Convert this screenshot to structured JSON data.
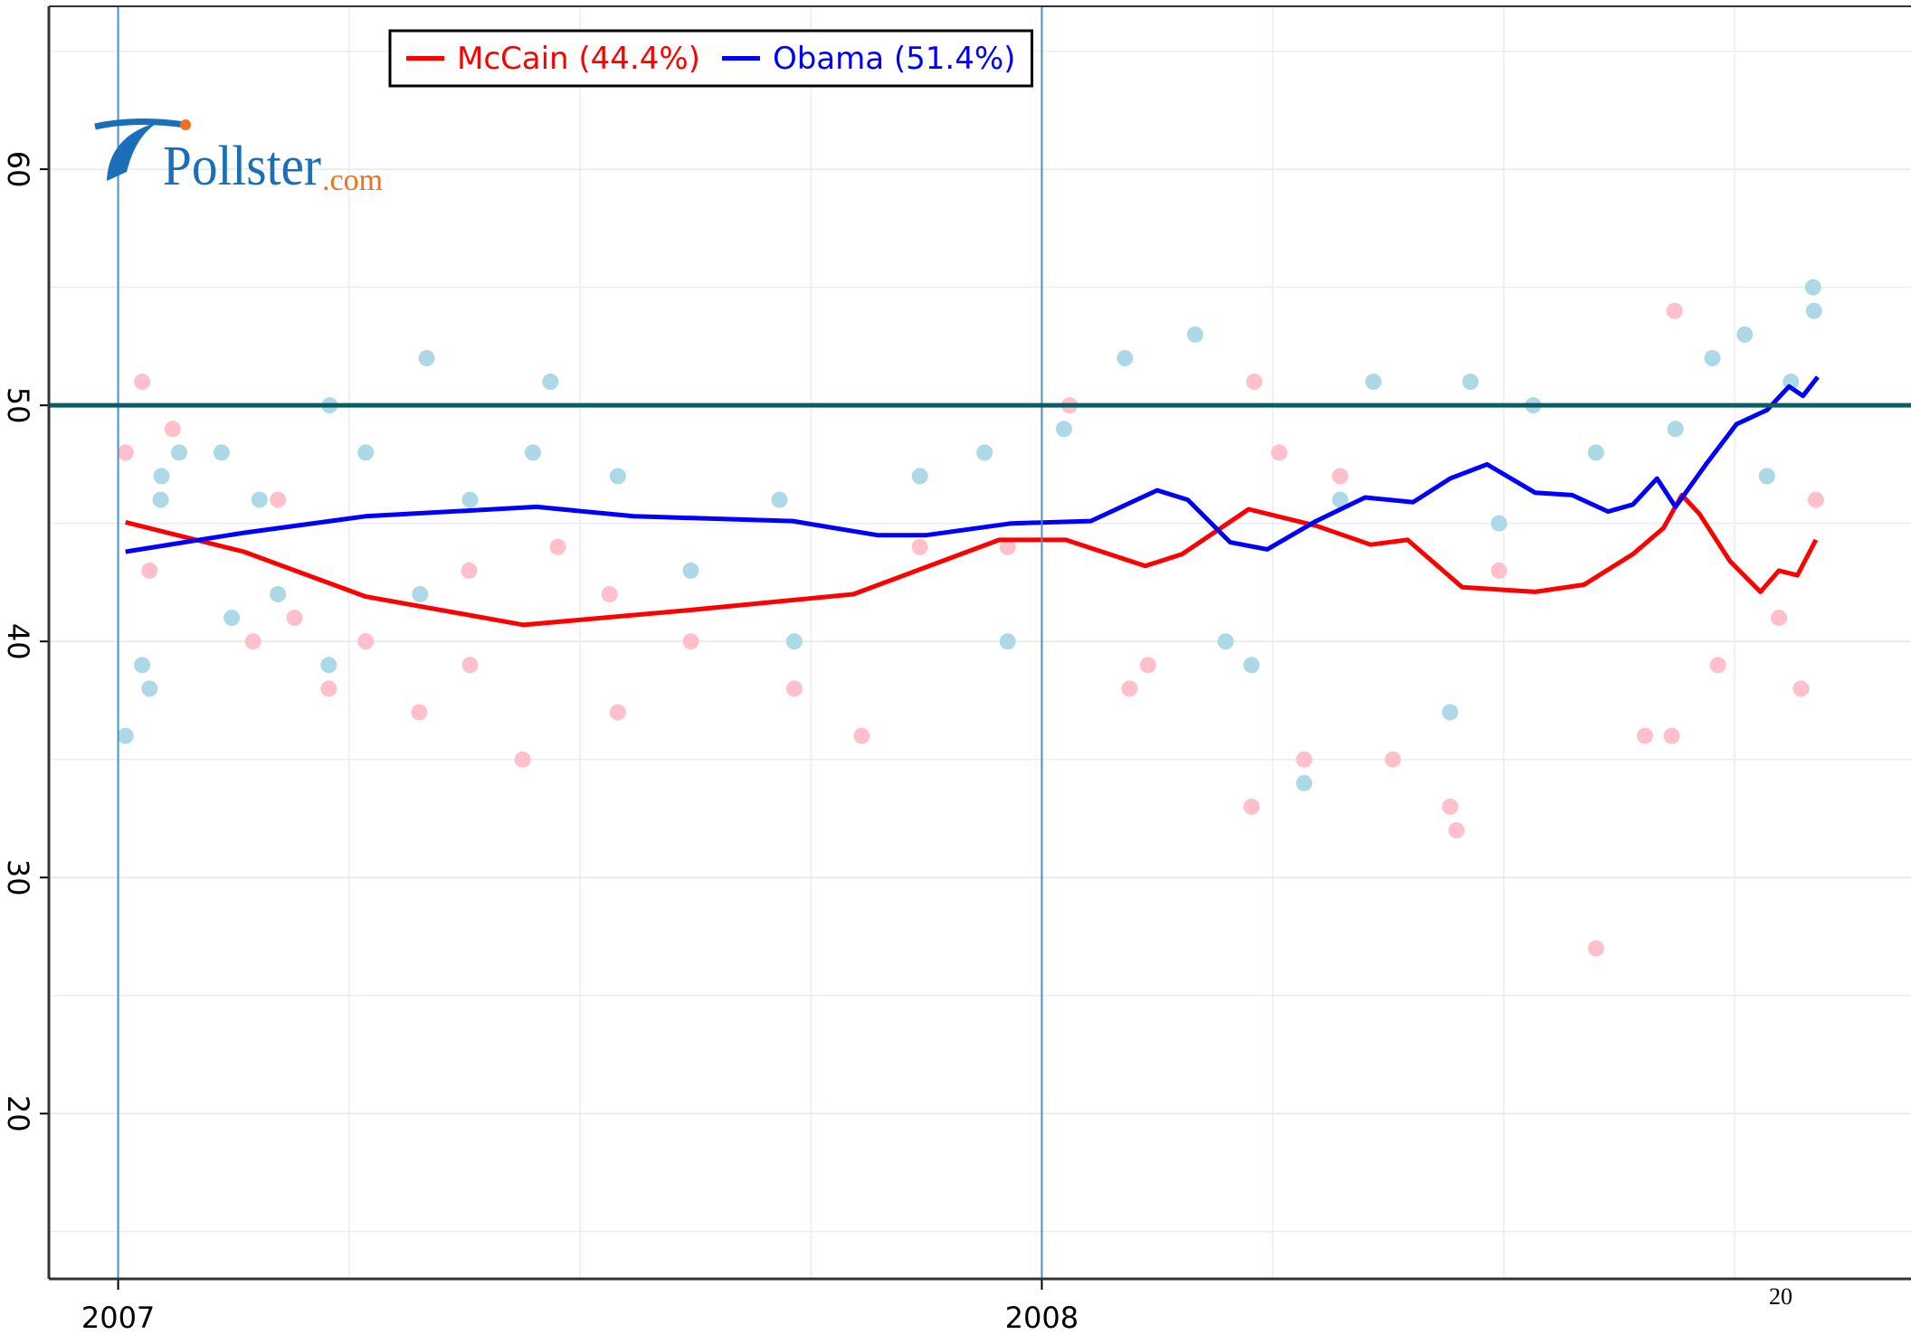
{
  "chart_data": {
    "type": "scatter",
    "logo": {
      "name": "Pollster",
      "suffix": ".com"
    },
    "annotation": "20",
    "xlim": [
      2006.925,
      2008.941
    ],
    "xticks": [
      2007,
      2008
    ],
    "xminor": [
      2007.25,
      2007.5,
      2007.75,
      2008.25,
      2008.5,
      2008.75
    ],
    "ylim": [
      13.0,
      66.9
    ],
    "yticks": [
      20,
      30,
      40,
      50,
      60
    ],
    "yminor": [
      15,
      25,
      35,
      45,
      55,
      65
    ],
    "hline": 50,
    "hline_color": "#0d5c63",
    "grid": true,
    "legend": "top",
    "series": [
      {
        "name": "McCain (44.4%)",
        "color": "#ff0000",
        "point_color": "#ffc0cb",
        "x": [
          2007.008,
          2007.136,
          2007.268,
          2007.439,
          2007.611,
          2007.796,
          2007.954,
          2008.026,
          2008.112,
          2008.152,
          2008.224,
          2008.297,
          2008.356,
          2008.396,
          2008.455,
          2008.534,
          2008.587,
          2008.64,
          2008.673,
          2008.693,
          2008.712,
          2008.745,
          2008.778,
          2008.798,
          2008.818,
          2008.838
        ],
        "values": [
          45.05,
          43.8,
          41.9,
          40.7,
          41.3,
          42.0,
          44.3,
          44.3,
          43.2,
          43.7,
          45.6,
          44.9,
          44.1,
          44.3,
          42.3,
          42.1,
          42.4,
          43.7,
          44.8,
          46.2,
          45.4,
          43.4,
          42.1,
          43.0,
          42.8,
          44.3
        ],
        "points": {
          "x": [
            2007.008,
            2007.026,
            2007.034,
            2007.059,
            2007.146,
            2007.173,
            2007.191,
            2007.228,
            2007.268,
            2007.326,
            2007.38,
            2007.381,
            2007.438,
            2007.476,
            2007.532,
            2007.541,
            2007.62,
            2007.732,
            2007.805,
            2007.868,
            2007.963,
            2008.03,
            2008.095,
            2008.115,
            2008.227,
            2008.23,
            2008.284,
            2008.38,
            2008.442,
            2008.449,
            2008.6,
            2008.685,
            2008.653,
            2008.682,
            2008.732,
            2008.798,
            2008.822,
            2008.838,
            2008.495,
            2008.323,
            2008.257
          ],
          "y": [
            48,
            51,
            43,
            49,
            40,
            46,
            41,
            38,
            40,
            37,
            43,
            39,
            35,
            44,
            42,
            37,
            40,
            38,
            36,
            44,
            44,
            50,
            38,
            39,
            33,
            51,
            35,
            35,
            33,
            32,
            27,
            54,
            36,
            36,
            39,
            41,
            38,
            46,
            43,
            47,
            48
          ]
        }
      },
      {
        "name": "Obama (51.4%)",
        "color": "#0000ff",
        "point_color": "#add8e6",
        "x": [
          2007.008,
          2007.136,
          2007.268,
          2007.453,
          2007.558,
          2007.73,
          2007.822,
          2007.875,
          2007.967,
          2008.053,
          2008.125,
          2008.158,
          2008.204,
          2008.244,
          2008.297,
          2008.35,
          2008.402,
          2008.442,
          2008.482,
          2008.534,
          2008.574,
          2008.613,
          2008.64,
          2008.666,
          2008.686,
          2008.719,
          2008.752,
          2008.785,
          2008.809,
          2008.824,
          2008.84
        ],
        "values": [
          43.8,
          44.6,
          45.3,
          45.7,
          45.3,
          45.1,
          44.5,
          44.5,
          45.0,
          45.1,
          46.4,
          46.0,
          44.2,
          43.9,
          45.1,
          46.1,
          45.9,
          46.9,
          47.5,
          46.3,
          46.2,
          45.5,
          45.8,
          46.9,
          45.7,
          47.5,
          49.2,
          49.8,
          50.8,
          50.4,
          51.2
        ],
        "points": {
          "x": [
            2007.008,
            2007.026,
            2007.034,
            2007.047,
            2007.046,
            2007.066,
            2007.112,
            2007.123,
            2007.153,
            2007.173,
            2007.228,
            2007.229,
            2007.268,
            2007.334,
            2007.327,
            2007.381,
            2007.468,
            2007.449,
            2007.541,
            2007.62,
            2007.716,
            2007.732,
            2007.868,
            2007.938,
            2007.963,
            2008.024,
            2008.09,
            2008.166,
            2008.199,
            2008.227,
            2008.284,
            2008.359,
            2008.442,
            2008.464,
            2008.532,
            2008.6,
            2008.686,
            2008.726,
            2008.761,
            2008.835,
            2008.836,
            2008.811,
            2008.785,
            2008.495,
            2008.323
          ],
          "y": [
            36,
            39,
            38,
            47,
            46,
            48,
            48,
            41,
            46,
            42,
            39,
            50,
            48,
            52,
            42,
            46,
            51,
            48,
            47,
            43,
            46,
            40,
            47,
            48,
            40,
            49,
            52,
            53,
            40,
            39,
            34,
            51,
            37,
            51,
            50,
            48,
            49,
            52,
            53,
            55,
            54,
            51,
            47,
            45,
            46
          ]
        }
      }
    ]
  }
}
